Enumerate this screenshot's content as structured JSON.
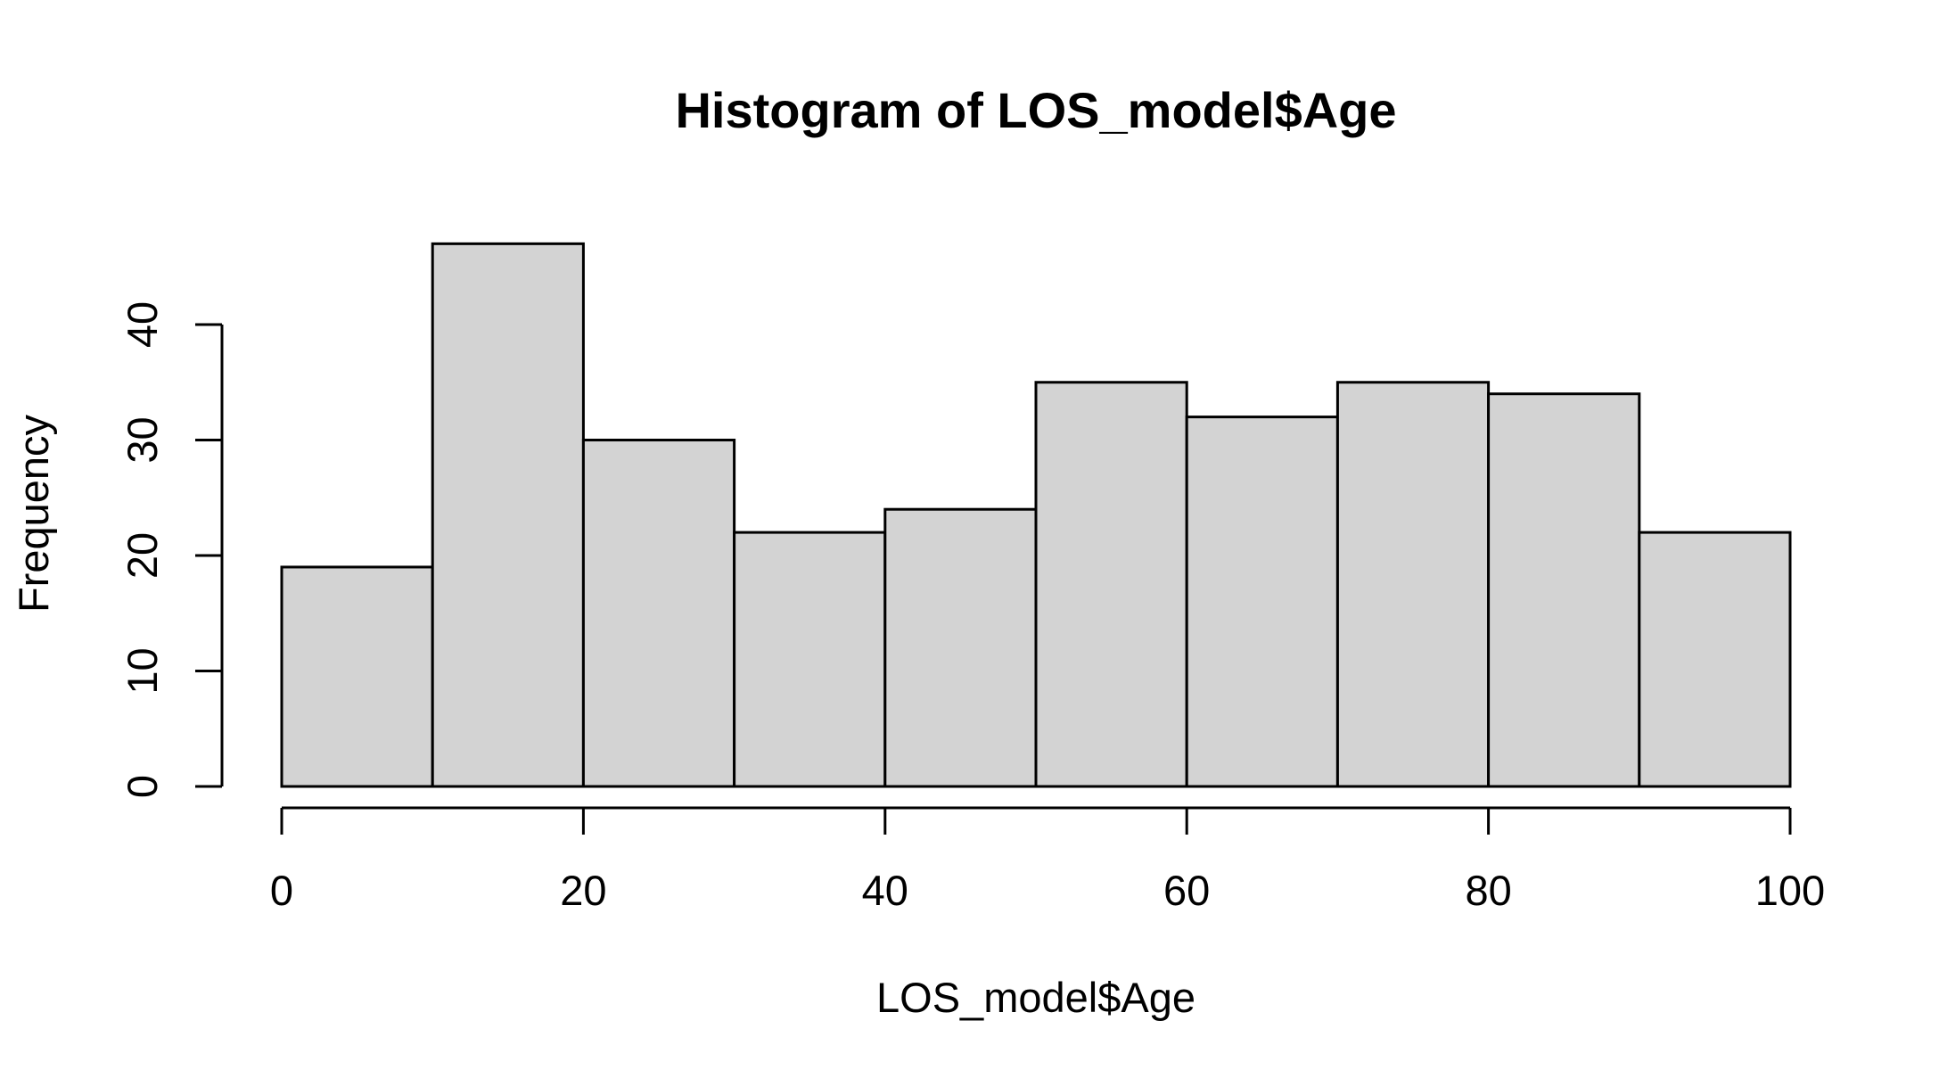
{
  "chart_data": {
    "type": "bar",
    "title": "Histogram of LOS_model$Age",
    "xlabel": "LOS_model$Age",
    "ylabel": "Frequency",
    "bins": [
      {
        "x0": 0,
        "x1": 10,
        "count": 19
      },
      {
        "x0": 10,
        "x1": 20,
        "count": 47
      },
      {
        "x0": 20,
        "x1": 30,
        "count": 30
      },
      {
        "x0": 30,
        "x1": 40,
        "count": 22
      },
      {
        "x0": 40,
        "x1": 50,
        "count": 24
      },
      {
        "x0": 50,
        "x1": 60,
        "count": 35
      },
      {
        "x0": 60,
        "x1": 70,
        "count": 32
      },
      {
        "x0": 70,
        "x1": 80,
        "count": 35
      },
      {
        "x0": 80,
        "x1": 90,
        "count": 34
      },
      {
        "x0": 90,
        "x1": 100,
        "count": 22
      }
    ],
    "xlim": [
      0,
      100
    ],
    "ylim": [
      0,
      47
    ],
    "x_ticks": [
      0,
      20,
      40,
      60,
      80,
      100
    ],
    "x_tick_labels": [
      "0",
      "20",
      "40",
      "60",
      "80",
      "100"
    ],
    "y_ticks": [
      0,
      10,
      20,
      30,
      40
    ],
    "y_tick_labels": [
      "0",
      "10",
      "20",
      "30",
      "40"
    ],
    "bar_color": "#d3d3d3",
    "edge_color": "#000000",
    "grid": false,
    "legend": "none"
  }
}
